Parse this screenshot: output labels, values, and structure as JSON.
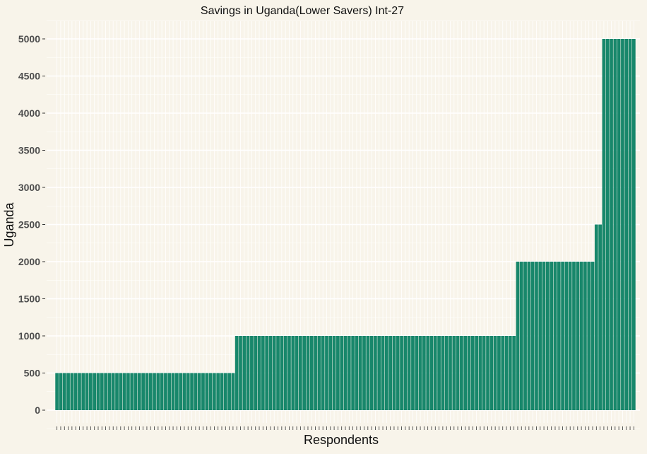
{
  "chart_data": {
    "type": "bar",
    "title": "Savings in Uganda(Lower Savers) Int-27",
    "xlabel": "Respondents",
    "ylabel": "Uganda",
    "ylim": [
      0,
      5000
    ],
    "yticks": [
      0,
      500,
      1000,
      1500,
      2000,
      2500,
      3000,
      3500,
      4000,
      4500,
      5000
    ],
    "ytick_labels": [
      "0",
      "500",
      "1000",
      "1500",
      "2000",
      "2500",
      "3000",
      "3500",
      "4000",
      "4500",
      "5000"
    ],
    "grid": true,
    "legend": "none",
    "colors": {
      "bar": "#18876b",
      "background": "#f8f4ea",
      "grid": "#ffffff"
    },
    "values": [
      500,
      500,
      500,
      500,
      500,
      500,
      500,
      500,
      500,
      500,
      500,
      500,
      500,
      500,
      500,
      500,
      500,
      500,
      500,
      500,
      500,
      500,
      500,
      500,
      500,
      500,
      500,
      500,
      500,
      500,
      500,
      500,
      500,
      500,
      500,
      500,
      500,
      500,
      500,
      500,
      500,
      500,
      500,
      500,
      500,
      500,
      500,
      500,
      1000,
      1000,
      1000,
      1000,
      1000,
      1000,
      1000,
      1000,
      1000,
      1000,
      1000,
      1000,
      1000,
      1000,
      1000,
      1000,
      1000,
      1000,
      1000,
      1000,
      1000,
      1000,
      1000,
      1000,
      1000,
      1000,
      1000,
      1000,
      1000,
      1000,
      1000,
      1000,
      1000,
      1000,
      1000,
      1000,
      1000,
      1000,
      1000,
      1000,
      1000,
      1000,
      1000,
      1000,
      1000,
      1000,
      1000,
      1000,
      1000,
      1000,
      1000,
      1000,
      1000,
      1000,
      1000,
      1000,
      1000,
      1000,
      1000,
      1000,
      1000,
      1000,
      1000,
      1000,
      1000,
      1000,
      1000,
      1000,
      1000,
      1000,
      1000,
      1000,
      1000,
      1000,
      1000,
      2000,
      2000,
      2000,
      2000,
      2000,
      2000,
      2000,
      2000,
      2000,
      2000,
      2000,
      2000,
      2000,
      2000,
      2000,
      2000,
      2000,
      2000,
      2000,
      2000,
      2000,
      2500,
      2500,
      5000,
      5000,
      5000,
      5000,
      5000,
      5000,
      5000,
      5000,
      5000
    ]
  }
}
